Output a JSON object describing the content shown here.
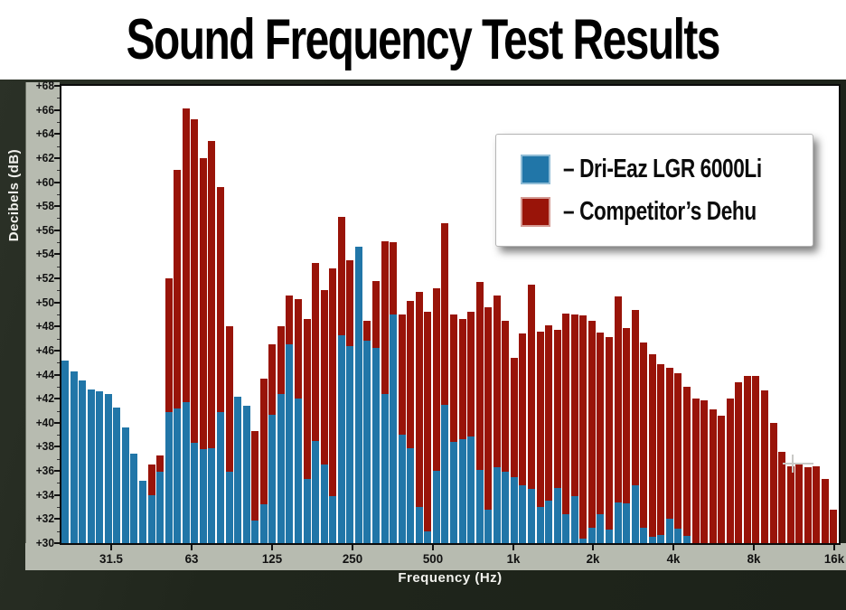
{
  "title": "Sound Frequency Test Results",
  "y_axis": {
    "label": "Decibels (dB)",
    "tick_labels": [
      "+68",
      "+66",
      "+64",
      "+62",
      "+60",
      "+58",
      "+56",
      "+54",
      "+52",
      "+50",
      "+48",
      "+46",
      "+44",
      "+42",
      "+40",
      "+38",
      "+36",
      "+34",
      "+32",
      "+30"
    ],
    "min": 30,
    "max": 68,
    "major_step": 2,
    "minor_step": 1
  },
  "x_axis": {
    "label": "Frequency (Hz)",
    "tick_labels": [
      "31.5",
      "63",
      "125",
      "250",
      "500",
      "1k",
      "2k",
      "4k",
      "8k",
      "16k"
    ]
  },
  "legend": {
    "items": [
      {
        "label": "– Dri-Eaz LGR 6000Li",
        "color": "#2176a8",
        "swatch_border": "#8fbcd6"
      },
      {
        "label": "– Competitor’s Dehu",
        "color": "#991409",
        "swatch_border": "#d49a93"
      }
    ]
  },
  "colors": {
    "blue_series": "#2176a8",
    "red_series": "#991409",
    "frame": "#20261c",
    "axis_strip": "#b7bbb0",
    "plot_background": "#ffffff",
    "title_text": "#000000",
    "axis_title_text": "#f2f2ee"
  },
  "chart_data": {
    "type": "bar",
    "title": "Sound Frequency Test Results",
    "xlabel": "Frequency (Hz)",
    "ylabel": "Decibels (dB)",
    "ylim": [
      30,
      68
    ],
    "x_scale": "logarithmic, ~20 Hz to 16 kHz, 90 narrow fractional-octave bands",
    "x_tick_labels": [
      "31.5",
      "63",
      "125",
      "250",
      "500",
      "1k",
      "2k",
      "4k",
      "8k",
      "16k"
    ],
    "grid": false,
    "legend_position": "upper right, floating white box",
    "note": "Blue bars drawn in front of red bars; null = bar not visible at that band. Values in dB.",
    "series": [
      {
        "name": "Dri-Eaz LGR 6000Li",
        "color": "#2176a8",
        "values": [
          45.2,
          44.3,
          43.5,
          42.8,
          42.6,
          42.4,
          41.3,
          39.6,
          37.4,
          35.2,
          34.0,
          35.9,
          40.9,
          41.2,
          41.7,
          38.3,
          37.8,
          37.9,
          40.9,
          35.9,
          42.2,
          41.4,
          31.9,
          33.2,
          40.7,
          42.4,
          46.5,
          42.0,
          35.3,
          38.5,
          36.5,
          33.9,
          47.3,
          46.4,
          54.6,
          46.8,
          46.2,
          42.4,
          49.0,
          39.0,
          37.9,
          33.0,
          31.0,
          36.0,
          41.5,
          38.4,
          38.6,
          38.9,
          36.1,
          32.8,
          36.3,
          35.9,
          35.5,
          34.8,
          34.5,
          33.0,
          33.5,
          34.6,
          32.4,
          33.9,
          30.4,
          31.3,
          32.4,
          31.1,
          33.4,
          33.3,
          34.8,
          31.3,
          30.5,
          30.7,
          32.0,
          31.2,
          30.6,
          null,
          null,
          null,
          null,
          null,
          null,
          null,
          null,
          null,
          null,
          null,
          null,
          null,
          null,
          null,
          null,
          null
        ]
      },
      {
        "name": "Competitor's Dehu",
        "color": "#991409",
        "values": [
          null,
          null,
          null,
          null,
          null,
          null,
          null,
          null,
          null,
          null,
          36.5,
          37.3,
          52.0,
          61.0,
          66.1,
          65.2,
          62.0,
          63.4,
          59.6,
          48.0,
          null,
          null,
          39.3,
          43.7,
          46.5,
          48.0,
          50.6,
          50.3,
          48.6,
          53.3,
          51.0,
          52.8,
          57.1,
          53.5,
          null,
          48.5,
          51.8,
          55.1,
          55.0,
          49.0,
          50.1,
          50.9,
          49.2,
          51.2,
          56.6,
          49.0,
          48.6,
          49.2,
          51.7,
          49.6,
          50.6,
          48.5,
          45.4,
          47.4,
          51.5,
          47.6,
          48.1,
          47.7,
          49.1,
          49.0,
          48.9,
          48.5,
          47.5,
          47.1,
          50.5,
          47.9,
          49.4,
          46.7,
          45.7,
          44.9,
          44.6,
          44.1,
          43.0,
          42.0,
          41.9,
          41.1,
          40.6,
          42.0,
          43.4,
          43.9,
          43.9,
          42.7,
          40.0,
          37.6,
          36.4,
          36.5,
          36.3,
          36.4,
          35.3,
          32.8
        ]
      }
    ]
  }
}
